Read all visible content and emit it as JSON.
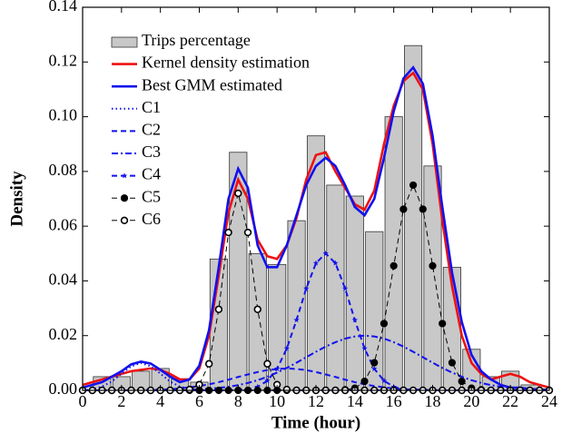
{
  "chart_data": {
    "type": "combo",
    "xlabel": "Time (hour)",
    "ylabel": "Density",
    "xlim": [
      0,
      24
    ],
    "xticks": [
      0,
      2,
      4,
      6,
      8,
      10,
      12,
      14,
      16,
      18,
      20,
      22,
      24
    ],
    "ylim": [
      0,
      0.14
    ],
    "yticks": [
      {
        "value": 0,
        "label": "0.00"
      },
      {
        "value": 0.02,
        "label": "0.02"
      },
      {
        "value": 0.04,
        "label": "0.04"
      },
      {
        "value": 0.06,
        "label": "0.06"
      },
      {
        "value": 0.08,
        "label": "0.08"
      },
      {
        "value": 0.1,
        "label": "0.10"
      },
      {
        "value": 0.12,
        "label": "0.12"
      },
      {
        "value": 0.14,
        "label": "0.14"
      }
    ],
    "bars": {
      "name": "Trips percentage",
      "color": "#c8c8c8",
      "x": [
        1,
        2,
        3,
        4,
        5,
        6,
        7,
        8,
        9,
        10,
        11,
        12,
        13,
        14,
        15,
        16,
        17,
        18,
        19,
        20,
        21,
        22,
        23
      ],
      "values": [
        0.005,
        0.005,
        0.007,
        0.008,
        0.004,
        0.003,
        0.048,
        0.087,
        0.05,
        0.046,
        0.062,
        0.093,
        0.075,
        0.071,
        0.058,
        0.1,
        0.126,
        0.082,
        0.045,
        0.015,
        0.005,
        0.007,
        0.002
      ]
    },
    "x": [
      0,
      0.5,
      1,
      1.5,
      2,
      2.5,
      3,
      3.5,
      4,
      4.5,
      5,
      5.5,
      6,
      6.5,
      7,
      7.5,
      8,
      8.5,
      9,
      9.5,
      10,
      10.5,
      11,
      11.5,
      12,
      12.5,
      13,
      13.5,
      14,
      14.5,
      15,
      15.5,
      16,
      16.5,
      17,
      17.5,
      18,
      18.5,
      19,
      19.5,
      20,
      20.5,
      21,
      21.5,
      22,
      22.5,
      23,
      23.5,
      24
    ],
    "series": [
      {
        "name": "Kernel density estimation",
        "color": "#ee1111",
        "style": "solid",
        "marker": "none",
        "values": [
          0.002,
          0.003,
          0.004,
          0.005,
          0.006,
          0.007,
          0.0075,
          0.008,
          0.0075,
          0.006,
          0.004,
          0.004,
          0.008,
          0.02,
          0.042,
          0.065,
          0.077,
          0.07,
          0.055,
          0.049,
          0.048,
          0.053,
          0.063,
          0.077,
          0.086,
          0.087,
          0.08,
          0.074,
          0.068,
          0.066,
          0.073,
          0.09,
          0.104,
          0.113,
          0.116,
          0.11,
          0.09,
          0.062,
          0.038,
          0.02,
          0.01,
          0.006,
          0.004,
          0.005,
          0.006,
          0.005,
          0.003,
          0.002,
          0.001
        ]
      },
      {
        "name": "Best GMM estimated",
        "color": "#1111ee",
        "style": "solid",
        "marker": "none",
        "values": [
          0.001,
          0.002,
          0.003,
          0.005,
          0.007,
          0.0095,
          0.0105,
          0.0098,
          0.0075,
          0.005,
          0.003,
          0.004,
          0.009,
          0.022,
          0.045,
          0.07,
          0.081,
          0.074,
          0.053,
          0.045,
          0.045,
          0.053,
          0.064,
          0.075,
          0.082,
          0.085,
          0.082,
          0.075,
          0.067,
          0.064,
          0.07,
          0.085,
          0.102,
          0.114,
          0.118,
          0.112,
          0.093,
          0.067,
          0.043,
          0.025,
          0.013,
          0.007,
          0.004,
          0.002,
          0.001,
          0.001,
          0.0005,
          0.0003,
          0.0002
        ]
      },
      {
        "name": "C1",
        "color": "#1111ee",
        "style": "dotted",
        "marker": "none",
        "values": [
          0.0001,
          0.0004,
          0.0014,
          0.0032,
          0.0061,
          0.0088,
          0.01,
          0.0088,
          0.0061,
          0.0032,
          0.0014,
          0.0004,
          0.0001,
          0,
          0,
          0,
          0,
          0,
          0,
          0,
          0,
          0,
          0,
          0,
          0,
          0,
          0,
          0,
          0,
          0,
          0,
          0,
          0,
          0,
          0,
          0,
          0,
          0,
          0,
          0,
          0,
          0,
          0,
          0,
          0,
          0,
          0,
          0,
          0
        ]
      },
      {
        "name": "C2",
        "color": "#1111ee",
        "style": "dashed",
        "marker": "none",
        "values": [
          0,
          0,
          0,
          0,
          0,
          0,
          0.0001,
          0.0002,
          0.0003,
          0.0004,
          0.0007,
          0.0011,
          0.0016,
          0.0022,
          0.003,
          0.0039,
          0.0049,
          0.0058,
          0.0067,
          0.0074,
          0.0078,
          0.008,
          0.0078,
          0.0074,
          0.0067,
          0.0058,
          0.0049,
          0.0039,
          0.003,
          0.0022,
          0.0016,
          0.0011,
          0.0007,
          0.0004,
          0.0003,
          0.0002,
          0.0001,
          0,
          0,
          0,
          0,
          0,
          0,
          0,
          0,
          0,
          0,
          0,
          0
        ]
      },
      {
        "name": "C3",
        "color": "#1111ee",
        "style": "dashdot",
        "marker": "none",
        "values": [
          0,
          0,
          0,
          0,
          0,
          0,
          0,
          0,
          0,
          0,
          0.0001,
          0.0002,
          0.0004,
          0.0006,
          0.0009,
          0.0013,
          0.0019,
          0.0027,
          0.0037,
          0.005,
          0.0065,
          0.0082,
          0.0101,
          0.0121,
          0.0141,
          0.016,
          0.0176,
          0.0189,
          0.0197,
          0.02,
          0.0197,
          0.0189,
          0.0176,
          0.016,
          0.0141,
          0.0121,
          0.0101,
          0.0082,
          0.0065,
          0.005,
          0.0037,
          0.0027,
          0.0019,
          0.0013,
          0.0009,
          0.0006,
          0.0004,
          0.0002,
          0.0001
        ]
      },
      {
        "name": "C4",
        "color": "#1111ee",
        "style": "dashed",
        "marker": "star",
        "values": [
          0,
          0,
          0,
          0,
          0,
          0,
          0,
          0,
          0,
          0,
          0,
          0,
          0,
          0,
          0,
          0,
          0.0001,
          0.0004,
          0.0013,
          0.0035,
          0.0079,
          0.0153,
          0.0257,
          0.0372,
          0.0465,
          0.05,
          0.0465,
          0.0372,
          0.0257,
          0.0153,
          0.0079,
          0.0035,
          0.0013,
          0.0004,
          0.0001,
          0,
          0,
          0,
          0,
          0,
          0,
          0,
          0,
          0,
          0,
          0,
          0,
          0,
          0
        ]
      },
      {
        "name": "C5",
        "color": "#000000",
        "style": "dashed",
        "marker": "filled",
        "values": [
          0,
          0,
          0,
          0,
          0,
          0,
          0,
          0,
          0,
          0,
          0,
          0,
          0,
          0,
          0,
          0,
          0,
          0,
          0,
          0,
          0,
          0,
          0,
          0,
          0,
          0,
          0,
          0.0002,
          0.0008,
          0.0033,
          0.0101,
          0.0244,
          0.0455,
          0.0662,
          0.075,
          0.0662,
          0.0455,
          0.0244,
          0.0101,
          0.0033,
          0.0008,
          0.0002,
          0,
          0,
          0,
          0,
          0,
          0,
          0
        ]
      },
      {
        "name": "C6",
        "color": "#000000",
        "style": "dashed",
        "marker": "open",
        "values": [
          0,
          0,
          0,
          0,
          0,
          0,
          0,
          0,
          0,
          0,
          0,
          0.0003,
          0.0021,
          0.0097,
          0.0296,
          0.0577,
          0.072,
          0.0577,
          0.0296,
          0.0097,
          0.0021,
          0.0003,
          0,
          0,
          0,
          0,
          0,
          0,
          0,
          0,
          0,
          0,
          0,
          0,
          0,
          0,
          0,
          0,
          0,
          0,
          0,
          0,
          0,
          0,
          0,
          0,
          0,
          0,
          0
        ]
      }
    ]
  }
}
